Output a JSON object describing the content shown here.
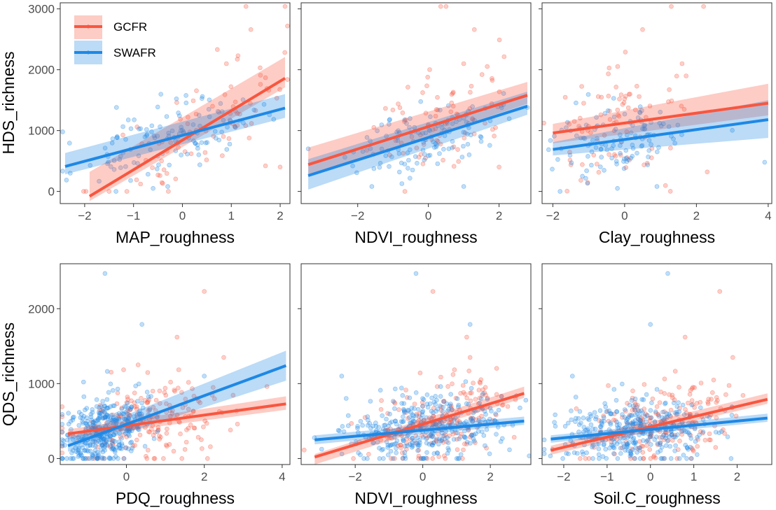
{
  "figure": {
    "top_ylabel": "HDS_richness",
    "bottom_ylabel": "QDS_richness"
  },
  "legend": {
    "placement": "top-left inside first panel",
    "items": [
      {
        "label": "GCFR",
        "color": "#F8563F"
      },
      {
        "label": "SWAFR",
        "color": "#1E88E5"
      }
    ]
  },
  "colors": {
    "GCFR": "#F8563F",
    "SWAFR": "#1E88E5",
    "panel_border": "#333333"
  },
  "chart_data": [
    {
      "type": "scatter",
      "xlabel": "MAP_roughness",
      "ylabel": "HDS_richness",
      "xlim": [
        -2.5,
        2.2
      ],
      "ylim": [
        -200,
        3100
      ],
      "xticks": [
        -2,
        -1,
        0,
        1,
        2
      ],
      "xtick_labels": [
        "−2",
        "−1",
        "0",
        "1",
        "2"
      ],
      "yticks": [
        0,
        1000,
        2000,
        3000
      ],
      "ytick_labels": [
        "0",
        "1000",
        "2000",
        "3000"
      ],
      "grid": false,
      "series": [
        {
          "name": "GCFR",
          "color": "#F8563F",
          "seed": 11,
          "fit": {
            "x": [
              -1.9,
              2.1
            ],
            "y": [
              -80,
              1860
            ],
            "ci": [
              [
                80,
                400
              ],
              [
                150,
                350
              ]
            ]
          },
          "points": {
            "n": 80,
            "x_center": 0.5,
            "x_spread": 1.0,
            "resid": 420
          },
          "extra_points": [
            [
              1.3,
              3040
            ],
            [
              2.1,
              3040
            ],
            [
              1.4,
              2660
            ],
            [
              1.7,
              420
            ],
            [
              2.0,
              400
            ],
            [
              0.9,
              2100
            ]
          ]
        },
        {
          "name": "SWAFR",
          "color": "#1E88E5",
          "seed": 23,
          "fit": {
            "x": [
              -2.4,
              2.1
            ],
            "y": [
              410,
              1370
            ],
            "ci": [
              [
                130,
                220
              ],
              [
                160,
                230
              ]
            ]
          },
          "points": {
            "n": 120,
            "x_center": -0.4,
            "x_spread": 0.9,
            "resid": 250
          },
          "extra_points": [
            [
              -2.45,
              980
            ],
            [
              -1.35,
              1380
            ],
            [
              -0.6,
              50
            ],
            [
              -0.3,
              80
            ]
          ]
        }
      ]
    },
    {
      "type": "scatter",
      "xlabel": "NDVI_roughness",
      "ylabel": "",
      "xlim": [
        -3.6,
        2.9
      ],
      "ylim": [
        -200,
        3100
      ],
      "xticks": [
        -2,
        0,
        2
      ],
      "xtick_labels": [
        "−2",
        "0",
        "2"
      ],
      "yticks": [
        0,
        1000,
        2000,
        3000
      ],
      "ytick_labels": [],
      "grid": false,
      "series": [
        {
          "name": "GCFR",
          "color": "#F8563F",
          "seed": 31,
          "fit": {
            "x": [
              -3.4,
              2.8
            ],
            "y": [
              440,
              1580
            ],
            "ci": [
              [
                200,
                280
              ],
              [
                140,
                220
              ]
            ]
          },
          "points": {
            "n": 80,
            "x_center": 0.4,
            "x_spread": 1.0,
            "resid": 430
          },
          "extra_points": [
            [
              0.35,
              3040
            ],
            [
              0.5,
              3040
            ],
            [
              1.3,
              2660
            ],
            [
              1.0,
              2100
            ],
            [
              2.0,
              400
            ]
          ]
        },
        {
          "name": "SWAFR",
          "color": "#1E88E5",
          "seed": 37,
          "fit": {
            "x": [
              -3.4,
              2.8
            ],
            "y": [
              260,
              1400
            ],
            "ci": [
              [
                230,
                270
              ],
              [
                140,
                240
              ]
            ]
          },
          "points": {
            "n": 120,
            "x_center": 0.0,
            "x_spread": 1.0,
            "resid": 260
          },
          "extra_points": [
            [
              -3.4,
              700
            ],
            [
              -1.6,
              80
            ],
            [
              1.0,
              80
            ],
            [
              2.8,
              1380
            ]
          ]
        }
      ]
    },
    {
      "type": "scatter",
      "xlabel": "Clay_roughness",
      "ylabel": "",
      "xlim": [
        -2.3,
        4.1
      ],
      "ylim": [
        -200,
        3100
      ],
      "xticks": [
        -2,
        0,
        2,
        4
      ],
      "xtick_labels": [
        "−2",
        "0",
        "2",
        "4"
      ],
      "yticks": [
        0,
        1000,
        2000,
        3000
      ],
      "ytick_labels": [],
      "grid": false,
      "series": [
        {
          "name": "GCFR",
          "color": "#F8563F",
          "seed": 41,
          "fit": {
            "x": [
              -2.0,
              4.0
            ],
            "y": [
              960,
              1450
            ],
            "ci": [
              [
                170,
                150
              ],
              [
                200,
                320
              ]
            ]
          },
          "points": {
            "n": 80,
            "x_center": 0.0,
            "x_spread": 1.0,
            "resid": 480
          },
          "extra_points": [
            [
              1.3,
              3040
            ],
            [
              2.2,
              3040
            ],
            [
              0.5,
              2660
            ],
            [
              1.6,
              2100
            ],
            [
              2.3,
              320
            ]
          ]
        },
        {
          "name": "SWAFR",
          "color": "#1E88E5",
          "seed": 47,
          "fit": {
            "x": [
              -2.0,
              4.0
            ],
            "y": [
              690,
              1180
            ],
            "ci": [
              [
                100,
                120
              ],
              [
                300,
                320
              ]
            ]
          },
          "points": {
            "n": 120,
            "x_center": -0.2,
            "x_spread": 1.0,
            "resid": 280
          },
          "extra_points": [
            [
              3.9,
              480
            ],
            [
              -0.2,
              50
            ],
            [
              0.9,
              80
            ]
          ]
        }
      ]
    },
    {
      "type": "scatter",
      "xlabel": "PDQ_roughness",
      "ylabel": "QDS_richness",
      "xlim": [
        -1.7,
        4.2
      ],
      "ylim": [
        -80,
        2600
      ],
      "xticks": [
        0,
        2,
        4
      ],
      "xtick_labels": [
        "0",
        "2",
        "4"
      ],
      "yticks": [
        0,
        1000,
        2000
      ],
      "ytick_labels": [
        "0",
        "1000",
        "2000"
      ],
      "grid": false,
      "series": [
        {
          "name": "GCFR",
          "color": "#F8563F",
          "seed": 53,
          "fit": {
            "x": [
              -1.5,
              4.1
            ],
            "y": [
              330,
              730
            ],
            "ci": [
              [
                60,
                60
              ],
              [
                80,
                100
              ]
            ]
          },
          "points": {
            "n": 200,
            "x_center": 0.6,
            "x_spread": 1.1,
            "resid": 300
          },
          "extra_points": [
            [
              2.0,
              2230
            ],
            [
              1.3,
              1620
            ],
            [
              2.5,
              1350
            ],
            [
              0.3,
              1250
            ]
          ]
        },
        {
          "name": "SWAFR",
          "color": "#1E88E5",
          "seed": 59,
          "fit": {
            "x": [
              -1.5,
              4.1
            ],
            "y": [
              170,
              1240
            ],
            "ci": [
              [
                80,
                100
              ],
              [
                200,
                200
              ]
            ]
          },
          "points": {
            "n": 360,
            "x_center": -0.6,
            "x_spread": 0.55,
            "resid": 210
          },
          "extra_points": [
            [
              -0.55,
              2470
            ],
            [
              0.4,
              1790
            ],
            [
              2.0,
              1100
            ]
          ]
        }
      ]
    },
    {
      "type": "scatter",
      "xlabel": "NDVI_roughness",
      "ylabel": "",
      "xlim": [
        -3.6,
        3.2
      ],
      "ylim": [
        -80,
        2600
      ],
      "xticks": [
        -2,
        0,
        2
      ],
      "xtick_labels": [
        "−2",
        "0",
        "2"
      ],
      "yticks": [
        0,
        1000,
        2000
      ],
      "ytick_labels": [],
      "grid": false,
      "series": [
        {
          "name": "GCFR",
          "color": "#F8563F",
          "seed": 61,
          "fit": {
            "x": [
              -3.2,
              3.0
            ],
            "y": [
              20,
              870
            ],
            "ci": [
              [
                100,
                40
              ],
              [
                60,
                90
              ]
            ]
          },
          "points": {
            "n": 200,
            "x_center": 0.5,
            "x_spread": 1.0,
            "resid": 280
          },
          "extra_points": [
            [
              0.3,
              2230
            ],
            [
              1.3,
              1620
            ],
            [
              1.4,
              1350
            ]
          ]
        },
        {
          "name": "SWAFR",
          "color": "#1E88E5",
          "seed": 67,
          "fit": {
            "x": [
              -3.2,
              3.0
            ],
            "y": [
              250,
              500
            ],
            "ci": [
              [
                60,
                60
              ],
              [
                50,
                60
              ]
            ]
          },
          "points": {
            "n": 360,
            "x_center": 0.0,
            "x_spread": 1.1,
            "resid": 220
          },
          "extra_points": [
            [
              -0.2,
              2470
            ],
            [
              1.4,
              1790
            ],
            [
              -2.4,
              1100
            ]
          ]
        }
      ]
    },
    {
      "type": "scatter",
      "xlabel": "Soil.C_roughness",
      "ylabel": "",
      "xlim": [
        -2.5,
        2.8
      ],
      "ylim": [
        -80,
        2600
      ],
      "xticks": [
        -2,
        -1,
        0,
        1,
        2
      ],
      "xtick_labels": [
        "−2",
        "−1",
        "0",
        "1",
        "2"
      ],
      "yticks": [
        0,
        1000,
        2000
      ],
      "ytick_labels": [],
      "grid": false,
      "series": [
        {
          "name": "GCFR",
          "color": "#F8563F",
          "seed": 71,
          "fit": {
            "x": [
              -2.3,
              2.7
            ],
            "y": [
              110,
              790
            ],
            "ci": [
              [
                60,
                60
              ],
              [
                60,
                80
              ]
            ]
          },
          "points": {
            "n": 200,
            "x_center": 0.3,
            "x_spread": 0.9,
            "resid": 290
          },
          "extra_points": [
            [
              1.6,
              2230
            ],
            [
              0.8,
              1620
            ],
            [
              1.9,
              1350
            ]
          ]
        },
        {
          "name": "SWAFR",
          "color": "#1E88E5",
          "seed": 73,
          "fit": {
            "x": [
              -2.3,
              2.7
            ],
            "y": [
              260,
              540
            ],
            "ci": [
              [
                50,
                50
              ],
              [
                50,
                60
              ]
            ]
          },
          "points": {
            "n": 360,
            "x_center": -0.3,
            "x_spread": 0.9,
            "resid": 210
          },
          "extra_points": [
            [
              0.4,
              2470
            ],
            [
              0.0,
              1790
            ],
            [
              -1.8,
              1100
            ]
          ]
        }
      ]
    }
  ]
}
